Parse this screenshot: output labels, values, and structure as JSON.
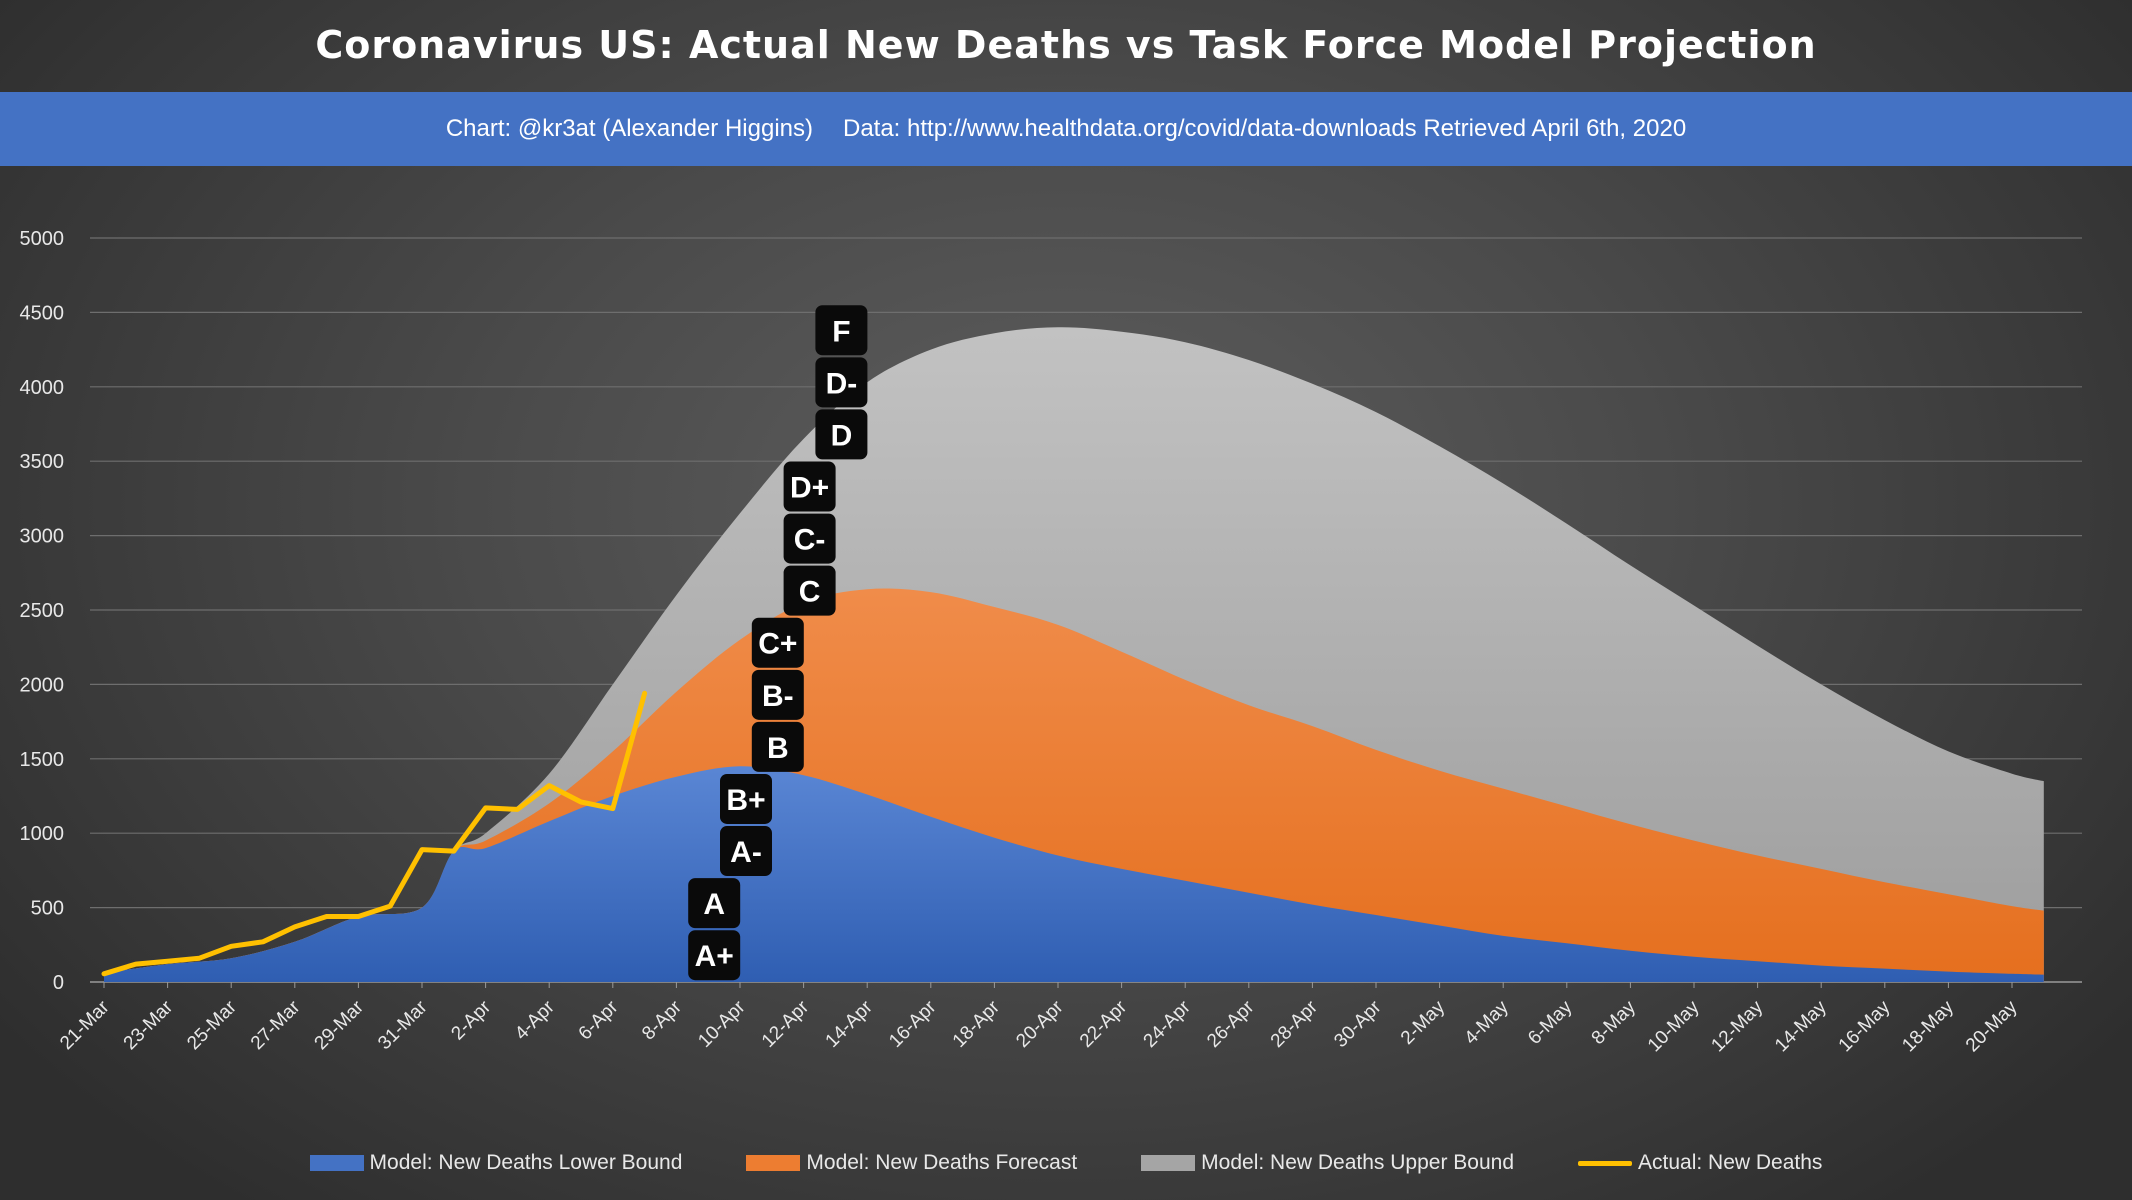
{
  "header": {
    "title": "Coronavirus US: Actual New Deaths vs Task Force Model Projection",
    "chart_credit": "Chart: @kr3at (Alexander Higgins)",
    "data_source": "Data: http://www.healthdata.org/covid/data-downloads Retrieved April 6th, 2020"
  },
  "colors": {
    "lower": "#4472c4",
    "forecast": "#ed7d31",
    "upper": "#a5a5a5",
    "actual": "#ffc000",
    "banner": "#4472c4"
  },
  "chart_data": {
    "type": "area",
    "title": "Coronavirus US: Actual New Deaths vs Task Force Model Projection",
    "ylim": [
      0,
      5000
    ],
    "yticks": [
      0,
      500,
      1000,
      1500,
      2000,
      2500,
      3000,
      3500,
      4000,
      4500,
      5000
    ],
    "grid": true,
    "legend_position": "bottom",
    "x_tick_labels": [
      "21-Mar",
      "23-Mar",
      "25-Mar",
      "27-Mar",
      "29-Mar",
      "31-Mar",
      "2-Apr",
      "4-Apr",
      "6-Apr",
      "8-Apr",
      "10-Apr",
      "12-Apr",
      "14-Apr",
      "16-Apr",
      "18-Apr",
      "20-Apr",
      "22-Apr",
      "24-Apr",
      "26-Apr",
      "28-Apr",
      "30-Apr",
      "2-May",
      "4-May",
      "6-May",
      "8-May",
      "10-May",
      "12-May",
      "14-May",
      "16-May",
      "18-May",
      "20-May"
    ],
    "x_start": "2020-03-21",
    "series": [
      {
        "name": "Model: New Deaths Lower Bound",
        "kind": "area",
        "x": [
          "2020-03-21",
          "2020-03-23",
          "2020-03-25",
          "2020-03-27",
          "2020-03-29",
          "2020-03-31",
          "2020-04-01",
          "2020-04-02",
          "2020-04-04",
          "2020-04-06",
          "2020-04-08",
          "2020-04-10",
          "2020-04-12",
          "2020-04-14",
          "2020-04-16",
          "2020-04-18",
          "2020-04-20",
          "2020-04-22",
          "2020-04-24",
          "2020-04-26",
          "2020-04-28",
          "2020-04-30",
          "2020-05-02",
          "2020-05-04",
          "2020-05-06",
          "2020-05-08",
          "2020-05-10",
          "2020-05-12",
          "2020-05-14",
          "2020-05-16",
          "2020-05-18",
          "2020-05-20",
          "2020-05-21"
        ],
        "values": [
          60,
          120,
          160,
          270,
          440,
          500,
          880,
          900,
          1080,
          1250,
          1380,
          1450,
          1390,
          1260,
          1110,
          970,
          850,
          760,
          680,
          600,
          520,
          450,
          380,
          310,
          260,
          210,
          170,
          140,
          110,
          90,
          70,
          55,
          50
        ]
      },
      {
        "name": "Model: New Deaths Forecast",
        "kind": "area",
        "x": [
          "2020-03-21",
          "2020-03-23",
          "2020-03-25",
          "2020-03-27",
          "2020-03-29",
          "2020-03-31",
          "2020-04-01",
          "2020-04-02",
          "2020-04-04",
          "2020-04-06",
          "2020-04-08",
          "2020-04-10",
          "2020-04-12",
          "2020-04-14",
          "2020-04-16",
          "2020-04-18",
          "2020-04-20",
          "2020-04-22",
          "2020-04-24",
          "2020-04-26",
          "2020-04-28",
          "2020-04-30",
          "2020-05-02",
          "2020-05-04",
          "2020-05-06",
          "2020-05-08",
          "2020-05-10",
          "2020-05-12",
          "2020-05-14",
          "2020-05-16",
          "2020-05-18",
          "2020-05-20",
          "2020-05-21"
        ],
        "values": [
          60,
          120,
          160,
          270,
          440,
          500,
          880,
          950,
          1200,
          1550,
          1950,
          2300,
          2550,
          2640,
          2620,
          2520,
          2400,
          2220,
          2030,
          1860,
          1720,
          1560,
          1420,
          1300,
          1180,
          1060,
          950,
          850,
          760,
          670,
          590,
          510,
          480
        ]
      },
      {
        "name": "Model: New Deaths Upper Bound",
        "kind": "area",
        "x": [
          "2020-03-21",
          "2020-03-23",
          "2020-03-25",
          "2020-03-27",
          "2020-03-29",
          "2020-03-31",
          "2020-04-01",
          "2020-04-02",
          "2020-04-04",
          "2020-04-06",
          "2020-04-08",
          "2020-04-10",
          "2020-04-12",
          "2020-04-14",
          "2020-04-16",
          "2020-04-18",
          "2020-04-20",
          "2020-04-22",
          "2020-04-24",
          "2020-04-26",
          "2020-04-28",
          "2020-04-30",
          "2020-05-02",
          "2020-05-04",
          "2020-05-06",
          "2020-05-08",
          "2020-05-10",
          "2020-05-12",
          "2020-05-14",
          "2020-05-16",
          "2020-05-18",
          "2020-05-20",
          "2020-05-21"
        ],
        "values": [
          60,
          120,
          160,
          270,
          440,
          500,
          880,
          1000,
          1400,
          2000,
          2600,
          3150,
          3650,
          4030,
          4250,
          4360,
          4400,
          4370,
          4300,
          4180,
          4020,
          3830,
          3600,
          3350,
          3080,
          2800,
          2530,
          2260,
          2000,
          1760,
          1550,
          1400,
          1350
        ]
      },
      {
        "name": "Actual: New Deaths",
        "kind": "line",
        "x": [
          "2020-03-21",
          "2020-03-22",
          "2020-03-23",
          "2020-03-24",
          "2020-03-25",
          "2020-03-26",
          "2020-03-27",
          "2020-03-28",
          "2020-03-29",
          "2020-03-30",
          "2020-03-31",
          "2020-04-01",
          "2020-04-02",
          "2020-04-03",
          "2020-04-04",
          "2020-04-05",
          "2020-04-06",
          "2020-04-07"
        ],
        "values": [
          55,
          120,
          140,
          160,
          240,
          270,
          370,
          440,
          440,
          510,
          890,
          880,
          1170,
          1160,
          1320,
          1210,
          1165,
          1940
        ]
      }
    ],
    "annotations": [
      {
        "label": "A+",
        "date": "2020-04-09",
        "y": 180
      },
      {
        "label": "A",
        "date": "2020-04-09",
        "y": 530
      },
      {
        "label": "A-",
        "date": "2020-04-10",
        "y": 880
      },
      {
        "label": "B+",
        "date": "2020-04-10",
        "y": 1230
      },
      {
        "label": "B",
        "date": "2020-04-11",
        "y": 1580
      },
      {
        "label": "B-",
        "date": "2020-04-11",
        "y": 1930
      },
      {
        "label": "C+",
        "date": "2020-04-11",
        "y": 2280
      },
      {
        "label": "C",
        "date": "2020-04-12",
        "y": 2630
      },
      {
        "label": "C-",
        "date": "2020-04-12",
        "y": 2980
      },
      {
        "label": "D+",
        "date": "2020-04-12",
        "y": 3330
      },
      {
        "label": "D",
        "date": "2020-04-13",
        "y": 3680
      },
      {
        "label": "D-",
        "date": "2020-04-13",
        "y": 4030
      },
      {
        "label": "F",
        "date": "2020-04-13",
        "y": 4380
      }
    ]
  }
}
